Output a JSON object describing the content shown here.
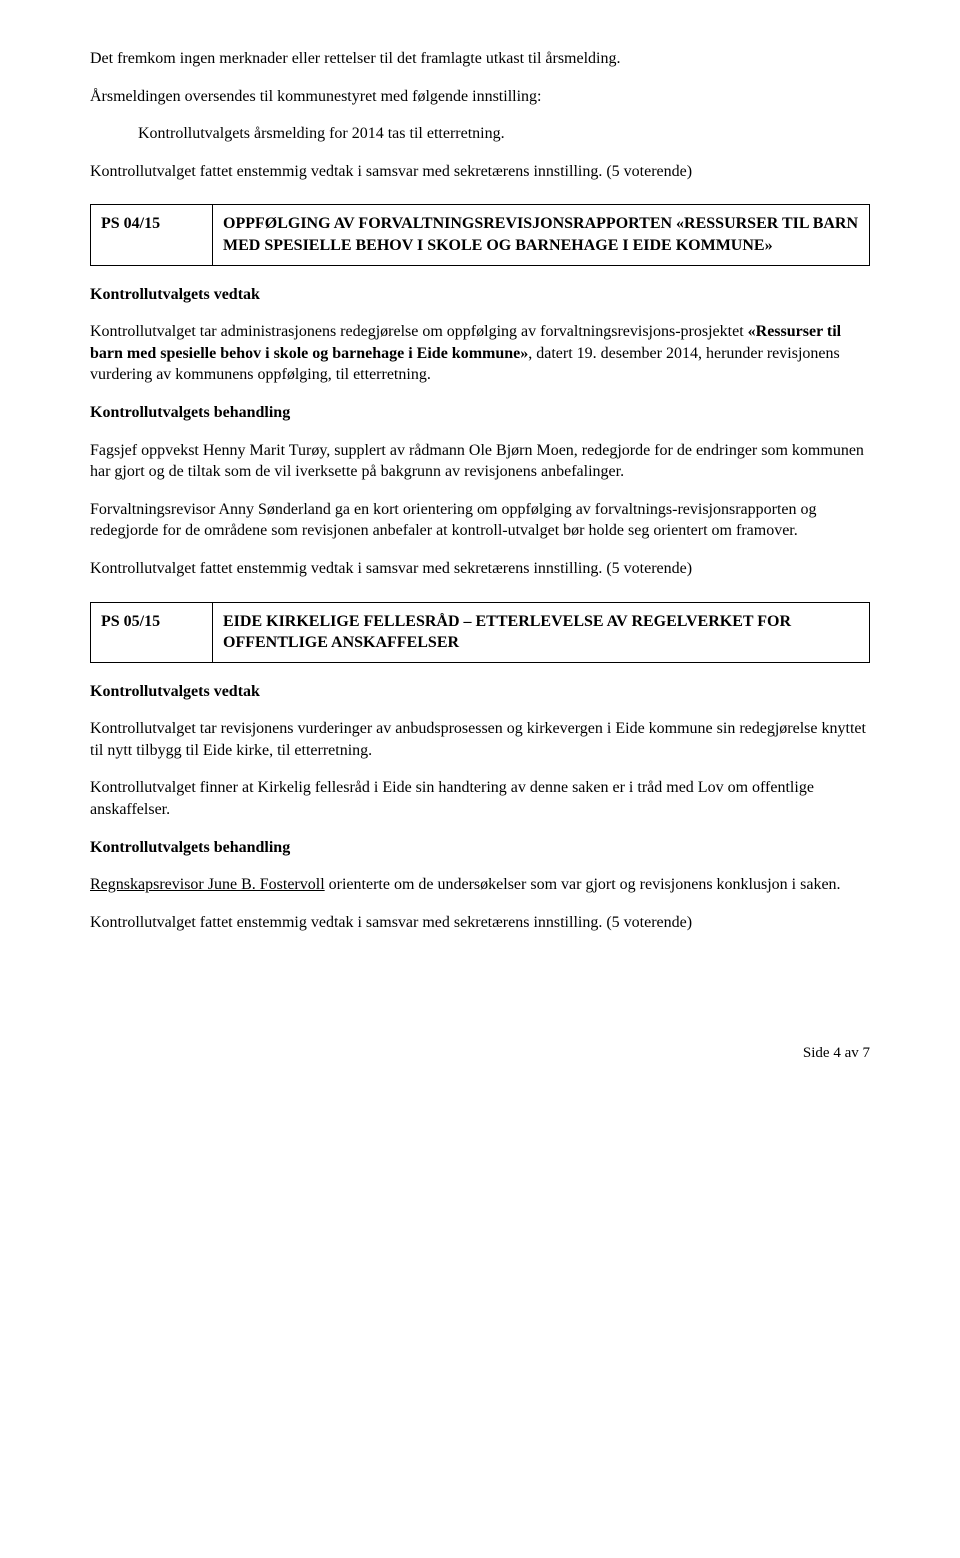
{
  "intro": {
    "p1": "Det fremkom ingen merknader eller rettelser til det framlagte utkast til årsmelding.",
    "p2": "Årsmeldingen oversendes til kommunestyret med følgende innstilling:",
    "indent": "Kontrollutvalgets årsmelding for 2014 tas til etterretning.",
    "p3": "Kontrollutvalget fattet enstemmig vedtak i samsvar med sekretærens innstilling. (5 voterende)"
  },
  "case04": {
    "code": "PS 04/15",
    "title": "OPPFØLGING AV FORVALTNINGSREVISJONSRAPPORTEN «RESSURSER TIL BARN MED SPESIELLE BEHOV I SKOLE OG BARNEHAGE I EIDE KOMMUNE»",
    "vedtakHeader": "Kontrollutvalgets vedtak",
    "vedtak1a": "Kontrollutvalget tar administrasjonens redegjørelse om oppfølging av forvaltningsrevisjons-prosjektet ",
    "vedtak1b": "«Ressurser til barn med spesielle behov i skole og barnehage i Eide kommune»",
    "vedtak1c": ", datert 19. desember 2014, herunder revisjonens vurdering av kommunens oppfølging, til etterretning.",
    "behandlingHeader": "Kontrollutvalgets behandling",
    "b1": "Fagsjef oppvekst Henny Marit Turøy, supplert av rådmann Ole Bjørn Moen, redegjorde for de endringer som kommunen har gjort og de tiltak som de vil iverksette på bakgrunn av revisjonens anbefalinger.",
    "b2": "Forvaltningsrevisor Anny Sønderland ga en kort orientering om oppfølging av forvaltnings-revisjonsrapporten og redegjorde for de områdene som revisjonen anbefaler at kontroll-utvalget bør holde seg orientert om framover.",
    "b3": "Kontrollutvalget fattet enstemmig vedtak i samsvar med sekretærens innstilling. (5 voterende)"
  },
  "case05": {
    "code": "PS 05/15",
    "title": "EIDE KIRKELIGE FELLESRÅD – ETTERLEVELSE AV REGELVERKET FOR OFFENTLIGE ANSKAFFELSER",
    "vedtakHeader": "Kontrollutvalgets vedtak",
    "v1": "Kontrollutvalget tar revisjonens vurderinger av anbudsprosessen og kirkevergen i Eide kommune sin redegjørelse knyttet til nytt tilbygg til Eide kirke, til etterretning.",
    "v2": "Kontrollutvalget finner at Kirkelig fellesråd i Eide sin handtering av denne saken er i tråd med Lov om offentlige anskaffelser.",
    "behandlingHeader": "Kontrollutvalgets behandling",
    "b1a": "Regnskapsrevisor June B. Fostervoll",
    "b1b": " orienterte om de undersøkelser som var gjort og revisjonens konklusjon i saken.",
    "b2": "Kontrollutvalget fattet enstemmig vedtak i samsvar med sekretærens innstilling. (5 voterende)"
  },
  "footer": "Side 4 av 7"
}
